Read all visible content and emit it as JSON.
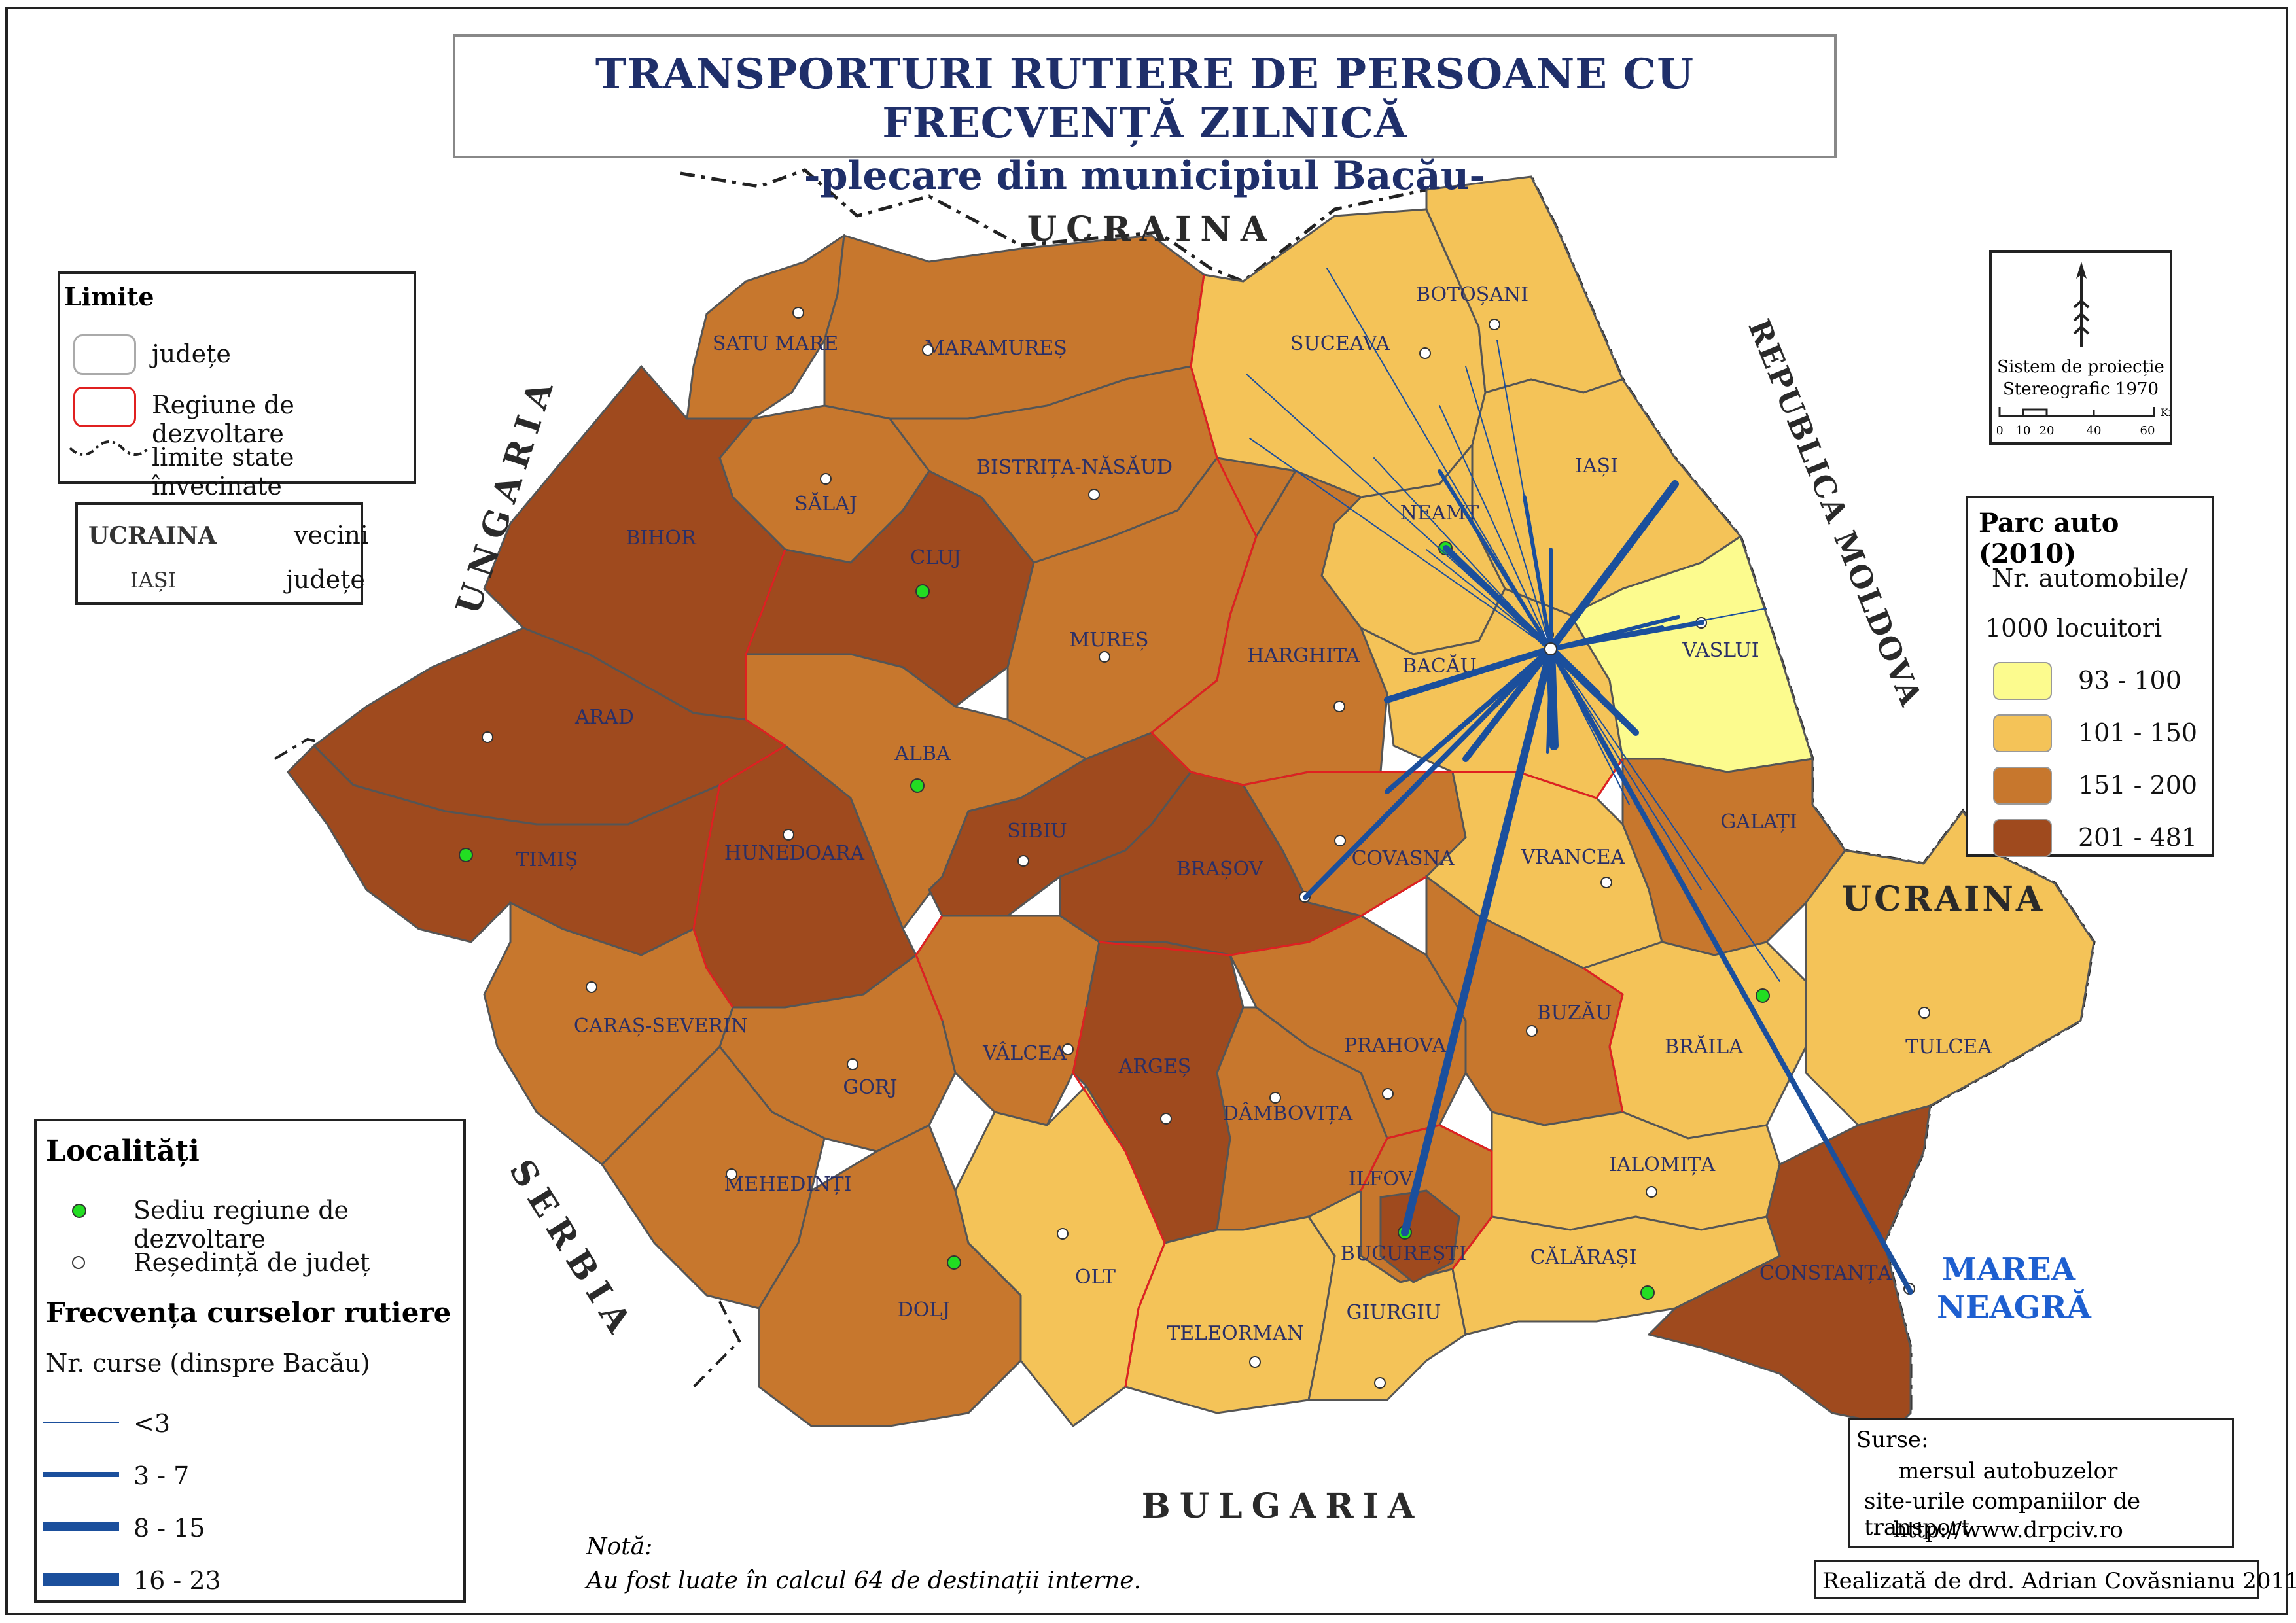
{
  "title": {
    "line1": "TRANSPORTURI RUTIERE DE PERSOANE CU FRECVENȚĂ ZILNICĂ",
    "line2": "-plecare din municipiul Bacău-"
  },
  "neighbors": {
    "ukraine_north": "UCRAINA",
    "ukraine_east": "UCRAINA",
    "hungary": "UNGARIA",
    "moldova": "REPUBLICA MOLDOVA",
    "serbia": "SERBIA",
    "bulgaria": "BULGARIA",
    "black_sea": "MAREA NEAGRĂ"
  },
  "counties": [
    {
      "id": "satu-mare",
      "name": "SATU MARE",
      "class": "151 - 200"
    },
    {
      "id": "maramures",
      "name": "MARAMUREȘ",
      "class": "151 - 200"
    },
    {
      "id": "suceava",
      "name": "SUCEAVA",
      "class": "101 - 150"
    },
    {
      "id": "botosani",
      "name": "BOTOȘANI",
      "class": "101 - 150"
    },
    {
      "id": "salaj",
      "name": "SĂLAJ",
      "class": "151 - 200"
    },
    {
      "id": "bistrita-nasaud",
      "name": "BISTRIȚA-NĂSĂUD",
      "class": "151 - 200"
    },
    {
      "id": "iasi",
      "name": "IAȘI",
      "class": "101 - 150"
    },
    {
      "id": "neamt",
      "name": "NEAMȚ",
      "class": "101 - 150"
    },
    {
      "id": "bihor",
      "name": "BIHOR",
      "class": "201 - 481"
    },
    {
      "id": "cluj",
      "name": "CLUJ",
      "class": "201 - 481"
    },
    {
      "id": "mures",
      "name": "MUREȘ",
      "class": "151 - 200"
    },
    {
      "id": "harghita",
      "name": "HARGHITA",
      "class": "151 - 200"
    },
    {
      "id": "bacau",
      "name": "BACĂU",
      "class": "101 - 150"
    },
    {
      "id": "vaslui",
      "name": "VASLUI",
      "class": "93 - 100"
    },
    {
      "id": "arad",
      "name": "ARAD",
      "class": "201 - 481"
    },
    {
      "id": "alba",
      "name": "ALBA",
      "class": "151 - 200"
    },
    {
      "id": "sibiu",
      "name": "SIBIU",
      "class": "201 - 481"
    },
    {
      "id": "covasna",
      "name": "COVASNA",
      "class": "151 - 200"
    },
    {
      "id": "brasov",
      "name": "BRAȘOV",
      "class": "201 - 481"
    },
    {
      "id": "vrancea",
      "name": "VRANCEA",
      "class": "101 - 150"
    },
    {
      "id": "galati",
      "name": "GALAȚI",
      "class": "151 - 200"
    },
    {
      "id": "timis",
      "name": "TIMIȘ",
      "class": "201 - 481"
    },
    {
      "id": "hunedoara",
      "name": "HUNEDOARA",
      "class": "201 - 481"
    },
    {
      "id": "caras-severin",
      "name": "CARAȘ-SEVERIN",
      "class": "151 - 200"
    },
    {
      "id": "valcea",
      "name": "VÂLCEA",
      "class": "151 - 200"
    },
    {
      "id": "arges",
      "name": "ARGEȘ",
      "class": "201 - 481"
    },
    {
      "id": "prahova",
      "name": "PRAHOVA",
      "class": "151 - 200"
    },
    {
      "id": "buzau",
      "name": "BUZĂU",
      "class": "151 - 200"
    },
    {
      "id": "braila",
      "name": "BRĂILA",
      "class": "101 - 150"
    },
    {
      "id": "tulcea",
      "name": "TULCEA",
      "class": "101 - 150"
    },
    {
      "id": "gorj",
      "name": "GORJ",
      "class": "151 - 200"
    },
    {
      "id": "dambovita",
      "name": "DÂMBOVIȚA",
      "class": "151 - 200"
    },
    {
      "id": "mehedinti",
      "name": "MEHEDINȚI",
      "class": "151 - 200"
    },
    {
      "id": "ilfov",
      "name": "ILFOV",
      "class": "151 - 200"
    },
    {
      "id": "bucuresti",
      "name": "BUCUREȘTI",
      "class": "201 - 481"
    },
    {
      "id": "ialomita",
      "name": "IALOMIȚA",
      "class": "101 - 150"
    },
    {
      "id": "dolj",
      "name": "DOLJ",
      "class": "151 - 200"
    },
    {
      "id": "olt",
      "name": "OLT",
      "class": "101 - 150"
    },
    {
      "id": "teleorman",
      "name": "TELEORMAN",
      "class": "101 - 150"
    },
    {
      "id": "giurgiu",
      "name": "GIURGIU",
      "class": "101 - 150"
    },
    {
      "id": "calarasi",
      "name": "CĂLĂRAȘI",
      "class": "101 - 150"
    },
    {
      "id": "constanta",
      "name": "CONSTANȚA",
      "class": "201 - 481"
    }
  ],
  "legend_limits": {
    "title": "Limite",
    "items": [
      "județe",
      "Regiune de dezvoltare",
      "limite state învecinate"
    ]
  },
  "legend_labels": {
    "neighbor_sample": "UCRAINA",
    "neighbor_text": "vecini",
    "county_sample": "IAȘI",
    "county_text": "județe"
  },
  "legend_parc": {
    "title": "Parc auto (2010)",
    "subtitle1": "Nr. automobile/",
    "subtitle2": "1000 locuitori",
    "classes": [
      {
        "label": "93 - 100",
        "color": "#fcfb8e"
      },
      {
        "label": "101 - 150",
        "color": "#f4c358"
      },
      {
        "label": "151 - 200",
        "color": "#c7772d"
      },
      {
        "label": "201 - 481",
        "color": "#9f4a1e"
      }
    ]
  },
  "legend_localitati": {
    "title": "Localități",
    "items": [
      "Sediu regiune de dezvoltare",
      "Reședință de județ"
    ],
    "freq_title": "Frecvența curselor rutiere",
    "freq_sub": "Nr. curse (dinspre Bacău)",
    "classes": [
      "<3",
      "3 - 7",
      "8 - 15",
      "16 - 23"
    ]
  },
  "projection": {
    "line1": "Sistem de proiecție",
    "line2": "Stereografic 1970",
    "scale_ticks": [
      "0",
      "10",
      "20",
      "40",
      "60"
    ],
    "unit": "Km"
  },
  "note": {
    "title": "Notă:",
    "text": "Au fost luate în calcul 64 de destinații interne."
  },
  "sources": {
    "title": "Surse:",
    "items": [
      "mersul autobuzelor",
      "site-urile companiilor de transport",
      "http://www.drpciv.ro"
    ]
  },
  "credit": "Realizată de drd. Adrian Covăsnianu 2011",
  "colors": {
    "route": "#1b4f9c",
    "region_border": "#e02020",
    "county_border": "#555555",
    "title_text": "#1f2f6a",
    "sea_text": "#1e5fd0",
    "regional_seat": "#22dd22"
  }
}
